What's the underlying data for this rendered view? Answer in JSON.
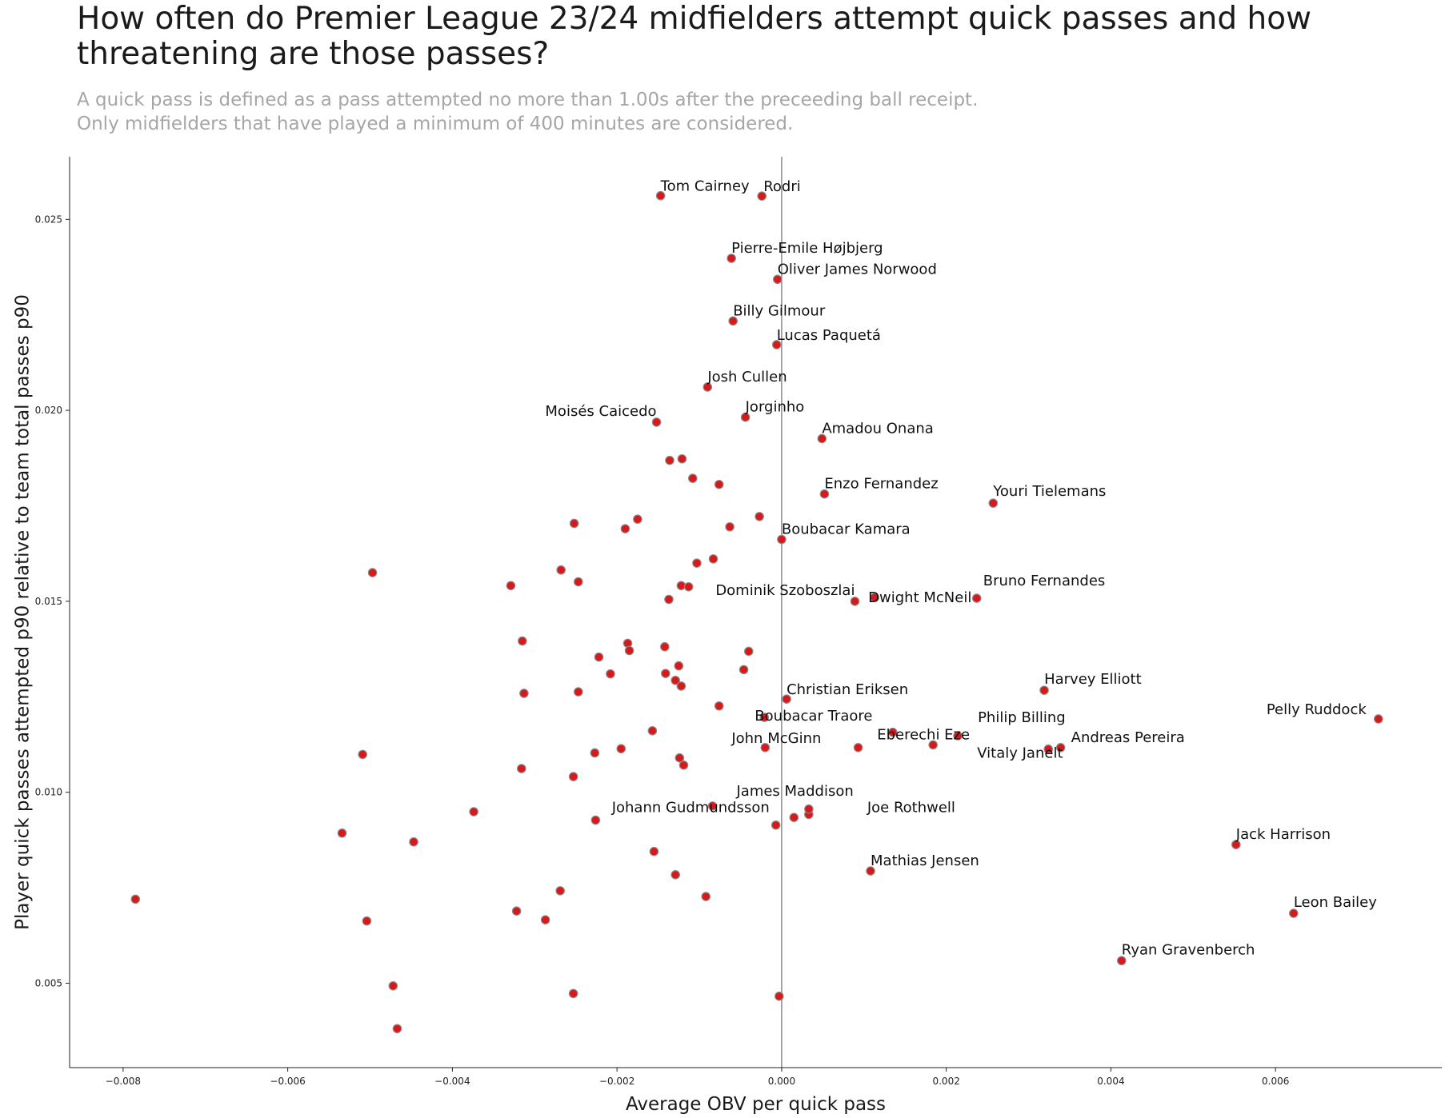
{
  "header": {
    "title_lines": [
      "How often do Premier League 23/24 midfielders attempt quick passes and how",
      "threatening are those passes?"
    ],
    "subtitle_lines": [
      "A quick pass is defined as a pass attempted no more than 1.00s after the preceeding ball receipt.",
      "Only midfielders that have played a minimum of 400 minutes are considered."
    ]
  },
  "chart_data": {
    "type": "scatter",
    "xlabel": "Average OBV per quick pass",
    "ylabel": "Player quick passes attempted p90 relative to team total passes p90",
    "xlim": [
      -0.00865,
      0.00802
    ],
    "ylim": [
      0.00279,
      0.02664
    ],
    "x_ticks": [
      -0.008,
      -0.006,
      -0.004,
      -0.002,
      0.0,
      0.002,
      0.004,
      0.006
    ],
    "x_tick_labels": [
      "−0.008",
      "−0.006",
      "−0.004",
      "−0.002",
      "0.000",
      "0.002",
      "0.004",
      "0.006"
    ],
    "y_ticks": [
      0.005,
      0.01,
      0.015,
      0.02,
      0.025
    ],
    "y_tick_labels": [
      "0.005",
      "0.010",
      "0.015",
      "0.020",
      "0.025"
    ],
    "reference_line": {
      "x": 0.0
    },
    "grid": false,
    "marker_color": "#d7191c",
    "marker_edge_color": "#8c8c8c",
    "labeled_points": [
      {
        "name": "Tom Cairney",
        "x": -0.00147,
        "y": 0.02562
      },
      {
        "name": "Rodri",
        "x": -0.00024,
        "y": 0.02561
      },
      {
        "name": "Pierre-Emile Højbjerg",
        "x": -0.00061,
        "y": 0.02398
      },
      {
        "name": "Oliver James Norwood",
        "x": -5e-05,
        "y": 0.02343
      },
      {
        "name": "Billy Gilmour",
        "x": -0.00059,
        "y": 0.02234
      },
      {
        "name": "Lucas Paquetá",
        "x": -6e-05,
        "y": 0.02172
      },
      {
        "name": "Josh Cullen",
        "x": -0.0009,
        "y": 0.02061
      },
      {
        "name": "Moisés Caicedo",
        "x": -0.00152,
        "y": 0.01969
      },
      {
        "name": "Jorginho",
        "x": -0.00044,
        "y": 0.01982
      },
      {
        "name": "Amadou Onana",
        "x": 0.00049,
        "y": 0.01926
      },
      {
        "name": "Enzo Fernandez",
        "x": 0.00052,
        "y": 0.01781
      },
      {
        "name": "Youri Tielemans",
        "x": 0.00257,
        "y": 0.01757
      },
      {
        "name": "Boubacar Kamara",
        "x": 0.0,
        "y": 0.01662
      },
      {
        "name": "Bruno Fernandes",
        "x": 0.00237,
        "y": 0.01508
      },
      {
        "name": "Dominik Szoboszlai",
        "x": 0.00089,
        "y": 0.015
      },
      {
        "name": "Dwight McNeil",
        "x": 0.00113,
        "y": 0.0151
      },
      {
        "name": "Christian Eriksen",
        "x": 6e-05,
        "y": 0.01244
      },
      {
        "name": "Harvey Elliott",
        "x": 0.00319,
        "y": 0.01267
      },
      {
        "name": "Pelly Ruddock",
        "x": 0.00725,
        "y": 0.01192
      },
      {
        "name": "Boubacar Traore",
        "x": -0.00021,
        "y": 0.01196
      },
      {
        "name": "Philip Billing",
        "x": 0.00214,
        "y": 0.01148
      },
      {
        "name": "Eberechi Eze",
        "x": 0.00184,
        "y": 0.01124
      },
      {
        "name": "Andreas Pereira",
        "x": 0.00339,
        "y": 0.01117
      },
      {
        "name": "Vitaly Janelt",
        "x": 0.00324,
        "y": 0.01113
      },
      {
        "name": "John McGinn",
        "x": -0.0002,
        "y": 0.01117
      },
      {
        "name": "James Maddison",
        "x": -0.00084,
        "y": 0.00964
      },
      {
        "name": "Johann Gudmundsson",
        "x": -7e-05,
        "y": 0.00914
      },
      {
        "name": "Joe Rothwell",
        "x": 0.00033,
        "y": 0.00956
      },
      {
        "name": "Jack Harrison",
        "x": 0.00552,
        "y": 0.00863
      },
      {
        "name": "Mathias Jensen",
        "x": 0.00108,
        "y": 0.00794
      },
      {
        "name": "Leon Bailey",
        "x": 0.00622,
        "y": 0.00683
      },
      {
        "name": "Ryan Gravenberch",
        "x": 0.00413,
        "y": 0.00559
      }
    ],
    "other_points": [
      {
        "x": -0.00136,
        "y": 0.01869
      },
      {
        "x": -0.00121,
        "y": 0.01873
      },
      {
        "x": -0.00108,
        "y": 0.01822
      },
      {
        "x": -0.00076,
        "y": 0.01806
      },
      {
        "x": -0.00027,
        "y": 0.01722
      },
      {
        "x": -0.00175,
        "y": 0.01715
      },
      {
        "x": -0.00252,
        "y": 0.01704
      },
      {
        "x": -0.0019,
        "y": 0.0169
      },
      {
        "x": -0.00063,
        "y": 0.01695
      },
      {
        "x": -0.00083,
        "y": 0.01611
      },
      {
        "x": -0.00103,
        "y": 0.016
      },
      {
        "x": -0.00268,
        "y": 0.01582
      },
      {
        "x": -0.00497,
        "y": 0.01575
      },
      {
        "x": -0.00329,
        "y": 0.01541
      },
      {
        "x": -0.00247,
        "y": 0.01551
      },
      {
        "x": -0.00122,
        "y": 0.01541
      },
      {
        "x": -0.00113,
        "y": 0.01538
      },
      {
        "x": -0.00137,
        "y": 0.01505
      },
      {
        "x": -0.00315,
        "y": 0.01396
      },
      {
        "x": -0.00187,
        "y": 0.0139
      },
      {
        "x": -0.00142,
        "y": 0.01381
      },
      {
        "x": -0.0004,
        "y": 0.01369
      },
      {
        "x": -0.00185,
        "y": 0.01371
      },
      {
        "x": -0.00222,
        "y": 0.01354
      },
      {
        "x": -0.00125,
        "y": 0.01331
      },
      {
        "x": -0.00046,
        "y": 0.01321
      },
      {
        "x": -0.00141,
        "y": 0.01311
      },
      {
        "x": -0.00208,
        "y": 0.0131
      },
      {
        "x": -0.00129,
        "y": 0.01293
      },
      {
        "x": -0.00122,
        "y": 0.01278
      },
      {
        "x": -0.00247,
        "y": 0.01263
      },
      {
        "x": -0.00313,
        "y": 0.01259
      },
      {
        "x": -0.00076,
        "y": 0.01226
      },
      {
        "x": -0.00157,
        "y": 0.01161
      },
      {
        "x": 0.00135,
        "y": 0.01157
      },
      {
        "x": -0.00195,
        "y": 0.01114
      },
      {
        "x": 0.00093,
        "y": 0.01117
      },
      {
        "x": -0.00227,
        "y": 0.01103
      },
      {
        "x": -0.00509,
        "y": 0.01099
      },
      {
        "x": -0.00124,
        "y": 0.0109
      },
      {
        "x": -0.00119,
        "y": 0.01071
      },
      {
        "x": -0.00316,
        "y": 0.01062
      },
      {
        "x": -0.00253,
        "y": 0.01041
      },
      {
        "x": 0.00033,
        "y": 0.00942
      },
      {
        "x": 0.00015,
        "y": 0.00934
      },
      {
        "x": -0.00374,
        "y": 0.00949
      },
      {
        "x": -0.00226,
        "y": 0.00927
      },
      {
        "x": -0.00534,
        "y": 0.00893
      },
      {
        "x": -0.00447,
        "y": 0.0087
      },
      {
        "x": -0.00155,
        "y": 0.00845
      },
      {
        "x": -0.00129,
        "y": 0.00784
      },
      {
        "x": -0.00269,
        "y": 0.00742
      },
      {
        "x": -0.00092,
        "y": 0.00727
      },
      {
        "x": -0.00785,
        "y": 0.0072
      },
      {
        "x": -0.00322,
        "y": 0.00689
      },
      {
        "x": -0.00287,
        "y": 0.00666
      },
      {
        "x": -0.00504,
        "y": 0.00663
      },
      {
        "x": -0.00472,
        "y": 0.00493
      },
      {
        "x": -0.00253,
        "y": 0.00473
      },
      {
        "x": -3e-05,
        "y": 0.00466
      },
      {
        "x": -0.00467,
        "y": 0.00381
      }
    ]
  }
}
